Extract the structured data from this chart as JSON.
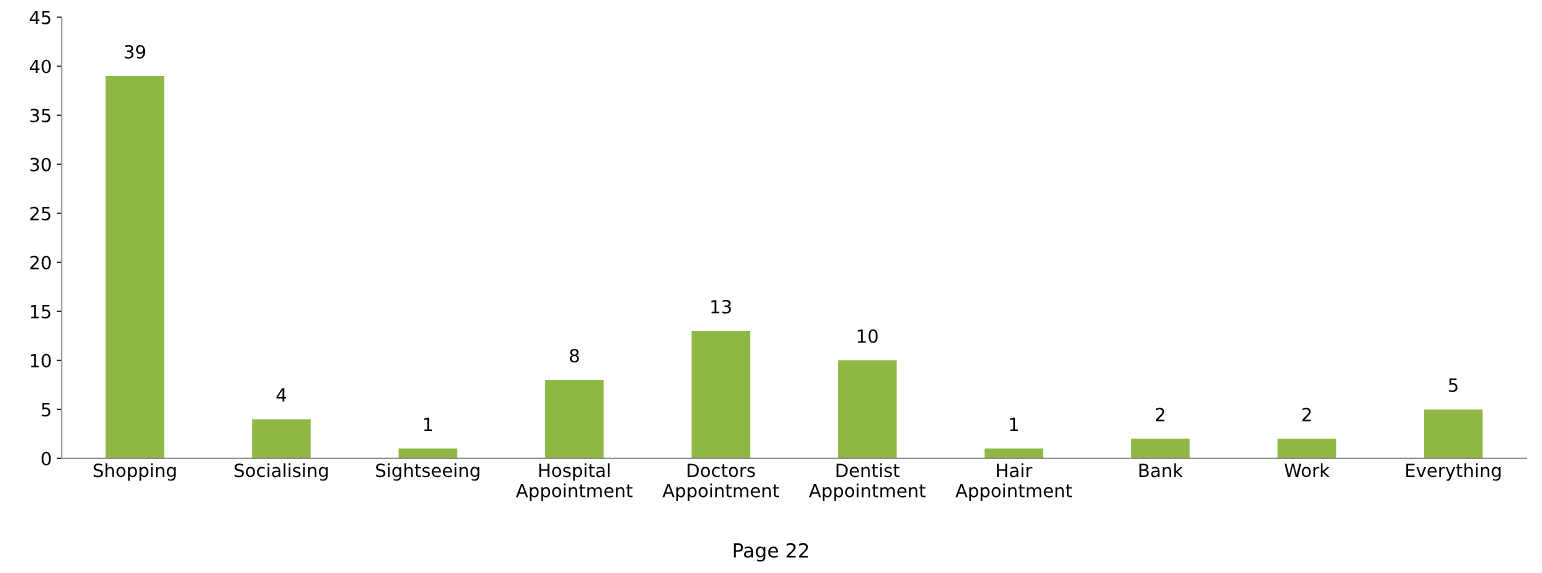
{
  "chart_data": {
    "type": "bar",
    "categories": [
      "Shopping",
      "Socialising",
      "Sightseeing",
      "Hospital\nAppointment",
      "Doctors\nAppointment",
      "Dentist\nAppointment",
      "Hair\nAppointment",
      "Bank",
      "Work",
      "Everything"
    ],
    "values": [
      39,
      4,
      1,
      8,
      13,
      10,
      1,
      2,
      2,
      5
    ],
    "color": "#8db843",
    "ylim": [
      0,
      45
    ],
    "yticks": [
      0,
      5,
      10,
      15,
      20,
      25,
      30,
      35,
      40,
      45
    ],
    "grid": false,
    "data_labels": true,
    "annotations": [
      "Page 22"
    ]
  }
}
